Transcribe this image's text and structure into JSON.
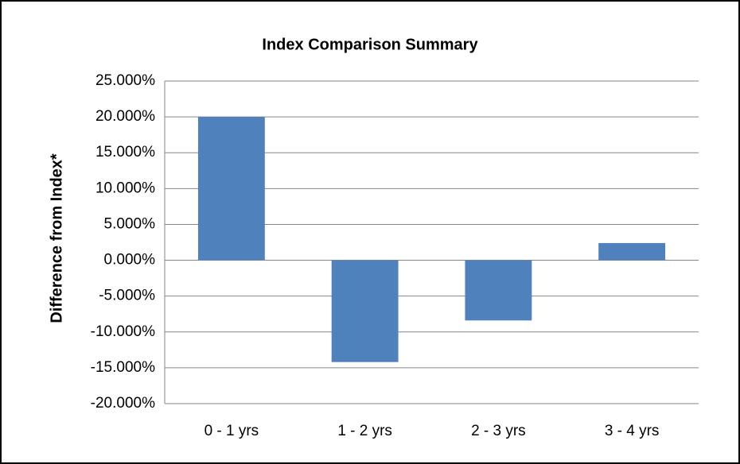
{
  "chart_data": {
    "type": "bar",
    "title": "Index Comparison Summary",
    "y_label": "Difference from Index*",
    "categories": [
      "0 - 1 yrs",
      "1 - 2 yrs",
      "2 - 3 yrs",
      "3 - 4 yrs"
    ],
    "values": [
      20.0,
      -14.2,
      -8.4,
      2.4
    ],
    "color": "#4f81bd",
    "ylim": [
      -20,
      25
    ],
    "yticks": [
      {
        "value": -20,
        "label": "-20.000%"
      },
      {
        "value": -15,
        "label": "-15.000%"
      },
      {
        "value": -10,
        "label": "-10.000%"
      },
      {
        "value": -5,
        "label": "-5.000%"
      },
      {
        "value": 0,
        "label": "0.000%"
      },
      {
        "value": 5,
        "label": "5.000%"
      },
      {
        "value": 10,
        "label": "10.000%"
      },
      {
        "value": 15,
        "label": "15.000%"
      },
      {
        "value": 20,
        "label": "20.000%"
      },
      {
        "value": 25,
        "label": "25.000%"
      }
    ],
    "grid": true
  }
}
